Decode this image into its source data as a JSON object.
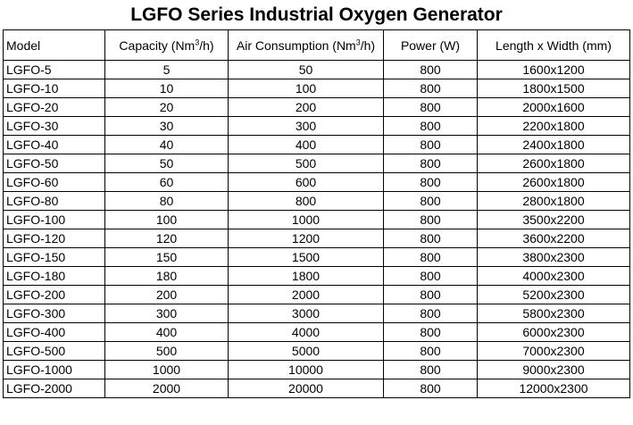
{
  "title": "LGFO Series Industrial Oxygen Generator",
  "headers": {
    "model": "Model",
    "capacity": {
      "pre": "Capacity (Nm",
      "sup": "3",
      "post": "/h)"
    },
    "air": {
      "pre": "Air Consumption (Nm",
      "sup": "3",
      "post": "/h)"
    },
    "power": "Power (W)",
    "size": "Length x Width (mm)"
  },
  "rows": [
    [
      "LGFO-5",
      "5",
      "50",
      "800",
      "1600x1200"
    ],
    [
      "LGFO-10",
      "10",
      "100",
      "800",
      "1800x1500"
    ],
    [
      "LGFO-20",
      "20",
      "200",
      "800",
      "2000x1600"
    ],
    [
      "LGFO-30",
      "30",
      "300",
      "800",
      "2200x1800"
    ],
    [
      "LGFO-40",
      "40",
      "400",
      "800",
      "2400x1800"
    ],
    [
      "LGFO-50",
      "50",
      "500",
      "800",
      "2600x1800"
    ],
    [
      "LGFO-60",
      "60",
      "600",
      "800",
      "2600x1800"
    ],
    [
      "LGFO-80",
      "80",
      "800",
      "800",
      "2800x1800"
    ],
    [
      "LGFO-100",
      "100",
      "1000",
      "800",
      "3500x2200"
    ],
    [
      "LGFO-120",
      "120",
      "1200",
      "800",
      "3600x2200"
    ],
    [
      "LGFO-150",
      "150",
      "1500",
      "800",
      "3800x2300"
    ],
    [
      "LGFO-180",
      "180",
      "1800",
      "800",
      "4000x2300"
    ],
    [
      "LGFO-200",
      "200",
      "2000",
      "800",
      "5200x2300"
    ],
    [
      "LGFO-300",
      "300",
      "3000",
      "800",
      "5800x2300"
    ],
    [
      "LGFO-400",
      "400",
      "4000",
      "800",
      "6000x2300"
    ],
    [
      "LGFO-500",
      "500",
      "5000",
      "800",
      "7000x2300"
    ],
    [
      "LGFO-1000",
      "1000",
      "10000",
      "800",
      "9000x2300"
    ],
    [
      "LGFO-2000",
      "2000",
      "20000",
      "800",
      "12000x2300"
    ]
  ]
}
